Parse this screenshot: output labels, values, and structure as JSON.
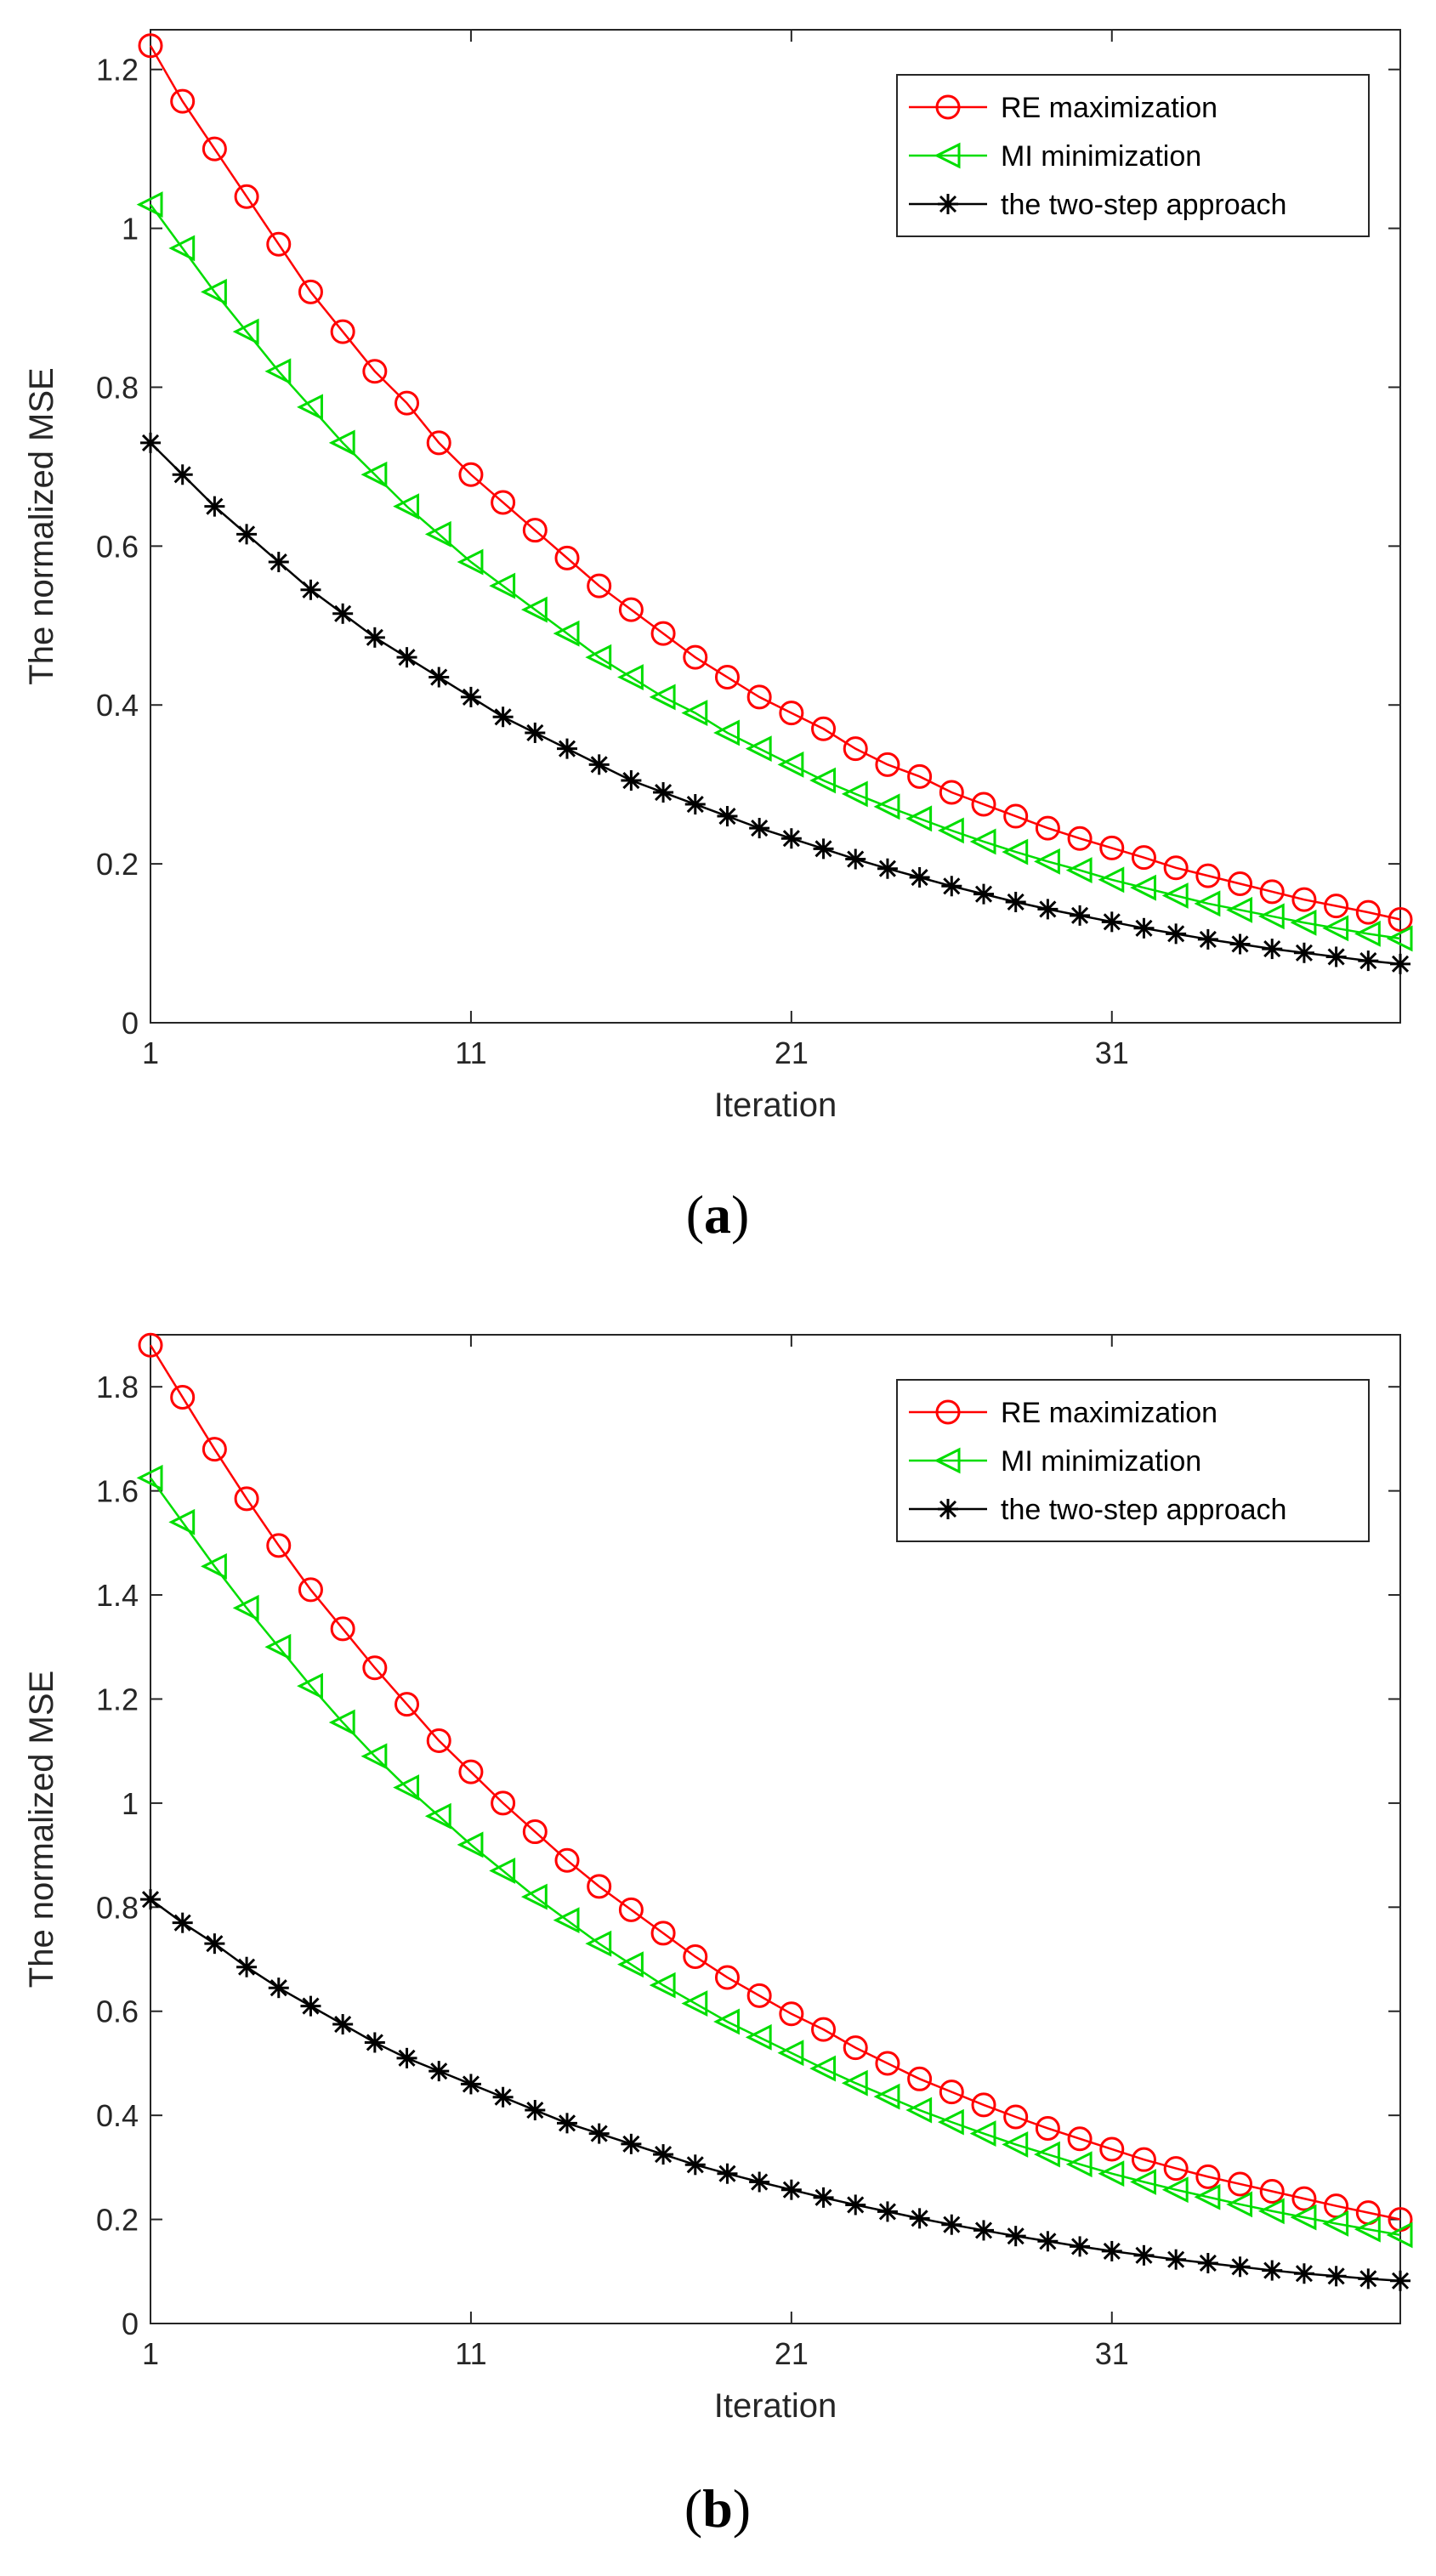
{
  "chart_data": [
    {
      "panel": "a",
      "type": "line",
      "caption_open": "(",
      "caption_letter": "a",
      "caption_close": ")",
      "xlabel": "Iteration",
      "ylabel": "The normalized MSE",
      "xlim": [
        1,
        40
      ],
      "ylim": [
        0,
        1.25
      ],
      "xticks": [
        1,
        11,
        21,
        31
      ],
      "xtick_labels": [
        "1",
        "11",
        "21",
        "31"
      ],
      "yticks": [
        0,
        0.2,
        0.4,
        0.6,
        0.8,
        1,
        1.2
      ],
      "ytick_labels": [
        "0",
        "0.2",
        "0.4",
        "0.6",
        "0.8",
        "1",
        "1.2"
      ],
      "legend_position": "top-right",
      "x": [
        1,
        2,
        3,
        4,
        5,
        6,
        7,
        8,
        9,
        10,
        11,
        12,
        13,
        14,
        15,
        16,
        17,
        18,
        19,
        20,
        21,
        22,
        23,
        24,
        25,
        26,
        27,
        28,
        29,
        30,
        31,
        32,
        33,
        34,
        35,
        36,
        37,
        38,
        39,
        40
      ],
      "series": [
        {
          "name": "RE maximization",
          "color": "#ff0000",
          "marker": "circle",
          "values": [
            1.23,
            1.16,
            1.1,
            1.04,
            0.98,
            0.92,
            0.87,
            0.82,
            0.78,
            0.73,
            0.69,
            0.655,
            0.62,
            0.585,
            0.55,
            0.52,
            0.49,
            0.46,
            0.435,
            0.41,
            0.39,
            0.37,
            0.345,
            0.325,
            0.31,
            0.29,
            0.275,
            0.26,
            0.245,
            0.232,
            0.22,
            0.208,
            0.195,
            0.185,
            0.175,
            0.165,
            0.155,
            0.147,
            0.139,
            0.13
          ]
        },
        {
          "name": "MI minimization",
          "color": "#00dd00",
          "marker": "triangle-left",
          "values": [
            1.03,
            0.975,
            0.92,
            0.87,
            0.82,
            0.775,
            0.73,
            0.69,
            0.65,
            0.615,
            0.58,
            0.55,
            0.52,
            0.49,
            0.46,
            0.435,
            0.41,
            0.39,
            0.365,
            0.345,
            0.325,
            0.305,
            0.288,
            0.272,
            0.257,
            0.242,
            0.228,
            0.215,
            0.203,
            0.192,
            0.18,
            0.17,
            0.16,
            0.15,
            0.142,
            0.134,
            0.126,
            0.119,
            0.112,
            0.106
          ]
        },
        {
          "name": "the two-step approach",
          "color": "#000000",
          "marker": "asterisk",
          "values": [
            0.73,
            0.69,
            0.65,
            0.615,
            0.58,
            0.545,
            0.515,
            0.485,
            0.46,
            0.435,
            0.41,
            0.385,
            0.365,
            0.345,
            0.325,
            0.305,
            0.29,
            0.275,
            0.26,
            0.245,
            0.232,
            0.219,
            0.206,
            0.194,
            0.183,
            0.172,
            0.162,
            0.152,
            0.143,
            0.135,
            0.127,
            0.119,
            0.112,
            0.105,
            0.099,
            0.093,
            0.088,
            0.083,
            0.078,
            0.074
          ]
        }
      ]
    },
    {
      "panel": "b",
      "type": "line",
      "caption_open": "(",
      "caption_letter": "b",
      "caption_close": ")",
      "xlabel": "Iteration",
      "ylabel": "The normalized MSE",
      "xlim": [
        1,
        40
      ],
      "ylim": [
        0,
        1.9
      ],
      "xticks": [
        1,
        11,
        21,
        31
      ],
      "xtick_labels": [
        "1",
        "11",
        "21",
        "31"
      ],
      "yticks": [
        0,
        0.2,
        0.4,
        0.6,
        0.8,
        1,
        1.2,
        1.4,
        1.6,
        1.8
      ],
      "ytick_labels": [
        "0",
        "0.2",
        "0.4",
        "0.6",
        "0.8",
        "1",
        "1.2",
        "1.4",
        "1.6",
        "1.8"
      ],
      "legend_position": "top-right",
      "x": [
        1,
        2,
        3,
        4,
        5,
        6,
        7,
        8,
        9,
        10,
        11,
        12,
        13,
        14,
        15,
        16,
        17,
        18,
        19,
        20,
        21,
        22,
        23,
        24,
        25,
        26,
        27,
        28,
        29,
        30,
        31,
        32,
        33,
        34,
        35,
        36,
        37,
        38,
        39,
        40
      ],
      "series": [
        {
          "name": "RE maximization",
          "color": "#ff0000",
          "marker": "circle",
          "values": [
            1.88,
            1.78,
            1.68,
            1.585,
            1.495,
            1.41,
            1.335,
            1.26,
            1.19,
            1.12,
            1.06,
            1.0,
            0.945,
            0.89,
            0.84,
            0.795,
            0.75,
            0.705,
            0.665,
            0.63,
            0.595,
            0.565,
            0.53,
            0.5,
            0.47,
            0.445,
            0.42,
            0.397,
            0.375,
            0.355,
            0.335,
            0.315,
            0.298,
            0.282,
            0.268,
            0.254,
            0.24,
            0.226,
            0.213,
            0.2
          ]
        },
        {
          "name": "MI minimization",
          "color": "#00dd00",
          "marker": "triangle-left",
          "values": [
            1.625,
            1.54,
            1.455,
            1.375,
            1.3,
            1.225,
            1.155,
            1.09,
            1.03,
            0.975,
            0.92,
            0.87,
            0.82,
            0.775,
            0.73,
            0.69,
            0.65,
            0.615,
            0.58,
            0.55,
            0.52,
            0.49,
            0.462,
            0.436,
            0.41,
            0.387,
            0.365,
            0.344,
            0.325,
            0.306,
            0.288,
            0.272,
            0.257,
            0.243,
            0.229,
            0.216,
            0.204,
            0.192,
            0.181,
            0.17
          ]
        },
        {
          "name": "the two-step approach",
          "color": "#000000",
          "marker": "asterisk",
          "values": [
            0.815,
            0.77,
            0.73,
            0.685,
            0.645,
            0.61,
            0.575,
            0.54,
            0.51,
            0.485,
            0.46,
            0.435,
            0.41,
            0.385,
            0.365,
            0.345,
            0.325,
            0.305,
            0.288,
            0.272,
            0.257,
            0.242,
            0.228,
            0.215,
            0.202,
            0.19,
            0.179,
            0.168,
            0.158,
            0.148,
            0.139,
            0.131,
            0.123,
            0.116,
            0.109,
            0.102,
            0.096,
            0.091,
            0.086,
            0.082
          ]
        }
      ]
    }
  ]
}
